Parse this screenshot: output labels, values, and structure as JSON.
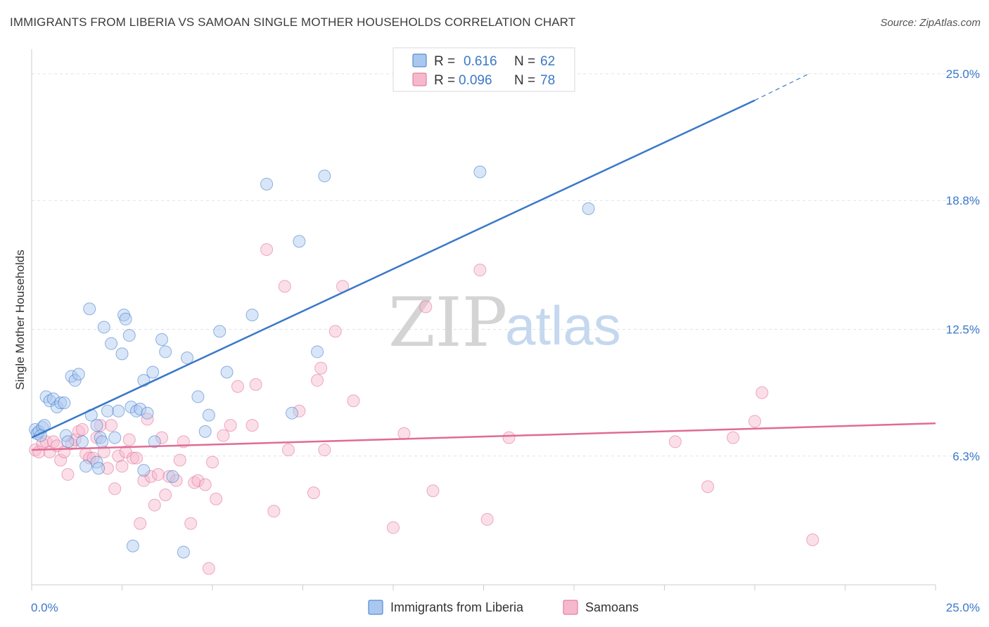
{
  "header": {
    "title": "IMMIGRANTS FROM LIBERIA VS SAMOAN SINGLE MOTHER HOUSEHOLDS CORRELATION CHART",
    "source": "Source: ZipAtlas.com"
  },
  "watermark": {
    "zip": "ZIP",
    "atlas": "atlas"
  },
  "colors": {
    "liberia": "#3a78c9",
    "liberia_fill": "#aac8ef",
    "samoans": "#e06b94",
    "samoans_fill": "#f6b9cc",
    "grid": "#dfe3e8",
    "tick_text": "#3a78c9"
  },
  "legend": {
    "r_label": "R =",
    "n_label": "N =",
    "rows": [
      {
        "series": "liberia",
        "r": "0.616",
        "n": "62"
      },
      {
        "series": "samoans",
        "r": "0.096",
        "n": "78"
      }
    ]
  },
  "chart_data": {
    "type": "scatter",
    "title": "IMMIGRANTS FROM LIBERIA VS SAMOAN SINGLE MOTHER HOUSEHOLDS CORRELATION CHART",
    "xlabel": "",
    "ylabel": "Single Mother Households",
    "xlim": [
      0,
      25
    ],
    "ylim": [
      0,
      26.2
    ],
    "x_tick_labels": [
      {
        "value": 0,
        "label": "0.0%"
      },
      {
        "value": 25,
        "label": "25.0%"
      }
    ],
    "y_ticks": [
      {
        "value": 6.3,
        "label": "6.3%"
      },
      {
        "value": 12.5,
        "label": "12.5%"
      },
      {
        "value": 18.8,
        "label": "18.8%"
      },
      {
        "value": 25.0,
        "label": "25.0%"
      }
    ],
    "grid": true,
    "legend_position": "top-center",
    "series": [
      {
        "name": "Immigrants from Liberia",
        "color": "#3a78c9",
        "trend": {
          "x0": 0,
          "y0": 7.2,
          "x1": 20,
          "y1": 23.7,
          "dashed_to_x": 21.5,
          "dashed_to_y": 25.0
        },
        "points": [
          [
            0.1,
            7.6
          ],
          [
            0.15,
            7.4
          ],
          [
            0.2,
            7.5
          ],
          [
            0.3,
            7.7
          ],
          [
            0.35,
            7.8
          ],
          [
            0.4,
            9.2
          ],
          [
            0.5,
            9.0
          ],
          [
            0.6,
            9.1
          ],
          [
            0.7,
            8.7
          ],
          [
            0.8,
            8.9
          ],
          [
            0.9,
            8.9
          ],
          [
            0.95,
            7.3
          ],
          [
            1.0,
            7.0
          ],
          [
            1.1,
            10.2
          ],
          [
            1.2,
            10.0
          ],
          [
            1.3,
            10.3
          ],
          [
            1.4,
            7.0
          ],
          [
            1.5,
            5.8
          ],
          [
            1.6,
            13.5
          ],
          [
            1.65,
            8.3
          ],
          [
            1.8,
            6.0
          ],
          [
            1.85,
            5.7
          ],
          [
            1.8,
            7.8
          ],
          [
            1.9,
            7.2
          ],
          [
            1.95,
            7.0
          ],
          [
            2.0,
            12.6
          ],
          [
            2.1,
            8.5
          ],
          [
            2.2,
            11.8
          ],
          [
            2.3,
            7.2
          ],
          [
            2.4,
            8.5
          ],
          [
            2.5,
            11.3
          ],
          [
            2.55,
            13.2
          ],
          [
            2.6,
            13.0
          ],
          [
            2.7,
            12.2
          ],
          [
            2.75,
            8.7
          ],
          [
            2.9,
            8.5
          ],
          [
            3.0,
            8.6
          ],
          [
            3.1,
            5.6
          ],
          [
            3.1,
            10.0
          ],
          [
            3.2,
            8.4
          ],
          [
            3.35,
            10.4
          ],
          [
            3.4,
            7.0
          ],
          [
            3.6,
            12.0
          ],
          [
            3.7,
            11.4
          ],
          [
            3.9,
            5.3
          ],
          [
            4.2,
            1.6
          ],
          [
            4.3,
            11.1
          ],
          [
            4.6,
            9.2
          ],
          [
            4.8,
            7.5
          ],
          [
            4.9,
            8.3
          ],
          [
            5.2,
            12.4
          ],
          [
            5.4,
            10.4
          ],
          [
            6.1,
            13.2
          ],
          [
            6.5,
            19.6
          ],
          [
            7.2,
            8.4
          ],
          [
            7.4,
            16.8
          ],
          [
            7.9,
            11.4
          ],
          [
            8.1,
            20.0
          ],
          [
            12.4,
            20.2
          ],
          [
            15.4,
            18.4
          ],
          [
            2.8,
            1.9
          ],
          [
            0.25,
            7.3
          ]
        ]
      },
      {
        "name": "Samoans",
        "color": "#e06b94",
        "trend": {
          "x0": 0,
          "y0": 6.6,
          "x1": 25,
          "y1": 7.9
        },
        "points": [
          [
            0.1,
            6.6
          ],
          [
            0.2,
            6.5
          ],
          [
            0.3,
            6.9
          ],
          [
            0.4,
            7.0
          ],
          [
            0.5,
            6.5
          ],
          [
            0.6,
            7.0
          ],
          [
            0.7,
            6.8
          ],
          [
            0.8,
            6.1
          ],
          [
            0.9,
            6.5
          ],
          [
            1.0,
            5.4
          ],
          [
            1.1,
            6.9
          ],
          [
            1.2,
            7.1
          ],
          [
            1.3,
            7.5
          ],
          [
            1.4,
            7.6
          ],
          [
            1.5,
            6.4
          ],
          [
            1.6,
            6.2
          ],
          [
            1.7,
            6.2
          ],
          [
            1.8,
            7.2
          ],
          [
            1.9,
            7.8
          ],
          [
            2.0,
            6.5
          ],
          [
            2.1,
            5.7
          ],
          [
            2.2,
            7.8
          ],
          [
            2.3,
            4.7
          ],
          [
            2.4,
            6.3
          ],
          [
            2.5,
            5.8
          ],
          [
            2.6,
            6.5
          ],
          [
            2.7,
            7.1
          ],
          [
            2.8,
            6.2
          ],
          [
            2.9,
            6.2
          ],
          [
            3.0,
            3.0
          ],
          [
            3.1,
            5.1
          ],
          [
            3.2,
            8.1
          ],
          [
            3.3,
            5.3
          ],
          [
            3.4,
            3.9
          ],
          [
            3.5,
            5.4
          ],
          [
            3.6,
            7.2
          ],
          [
            3.7,
            4.4
          ],
          [
            3.8,
            5.3
          ],
          [
            4.0,
            5.1
          ],
          [
            4.1,
            6.1
          ],
          [
            4.2,
            7.0
          ],
          [
            4.4,
            3.0
          ],
          [
            4.5,
            5.0
          ],
          [
            4.6,
            5.1
          ],
          [
            4.8,
            4.9
          ],
          [
            4.9,
            0.8
          ],
          [
            5.0,
            6.0
          ],
          [
            5.1,
            4.2
          ],
          [
            5.3,
            7.3
          ],
          [
            5.5,
            7.8
          ],
          [
            5.7,
            9.7
          ],
          [
            6.1,
            7.8
          ],
          [
            6.2,
            9.8
          ],
          [
            6.5,
            16.4
          ],
          [
            6.7,
            3.6
          ],
          [
            7.0,
            14.6
          ],
          [
            7.1,
            6.6
          ],
          [
            7.4,
            8.5
          ],
          [
            7.8,
            4.5
          ],
          [
            7.9,
            10.0
          ],
          [
            8.0,
            10.6
          ],
          [
            8.1,
            6.6
          ],
          [
            8.4,
            12.4
          ],
          [
            8.6,
            14.6
          ],
          [
            8.9,
            9.0
          ],
          [
            10.0,
            2.8
          ],
          [
            10.3,
            7.4
          ],
          [
            10.9,
            13.6
          ],
          [
            11.1,
            4.6
          ],
          [
            12.4,
            15.4
          ],
          [
            12.6,
            3.2
          ],
          [
            13.2,
            7.2
          ],
          [
            17.8,
            7.0
          ],
          [
            18.7,
            4.8
          ],
          [
            19.4,
            7.2
          ],
          [
            20.0,
            8.0
          ],
          [
            20.2,
            9.4
          ],
          [
            21.6,
            2.2
          ]
        ]
      }
    ]
  },
  "bottom_legend": [
    {
      "series": "liberia",
      "label": "Immigrants from Liberia"
    },
    {
      "series": "samoans",
      "label": "Samoans"
    }
  ]
}
